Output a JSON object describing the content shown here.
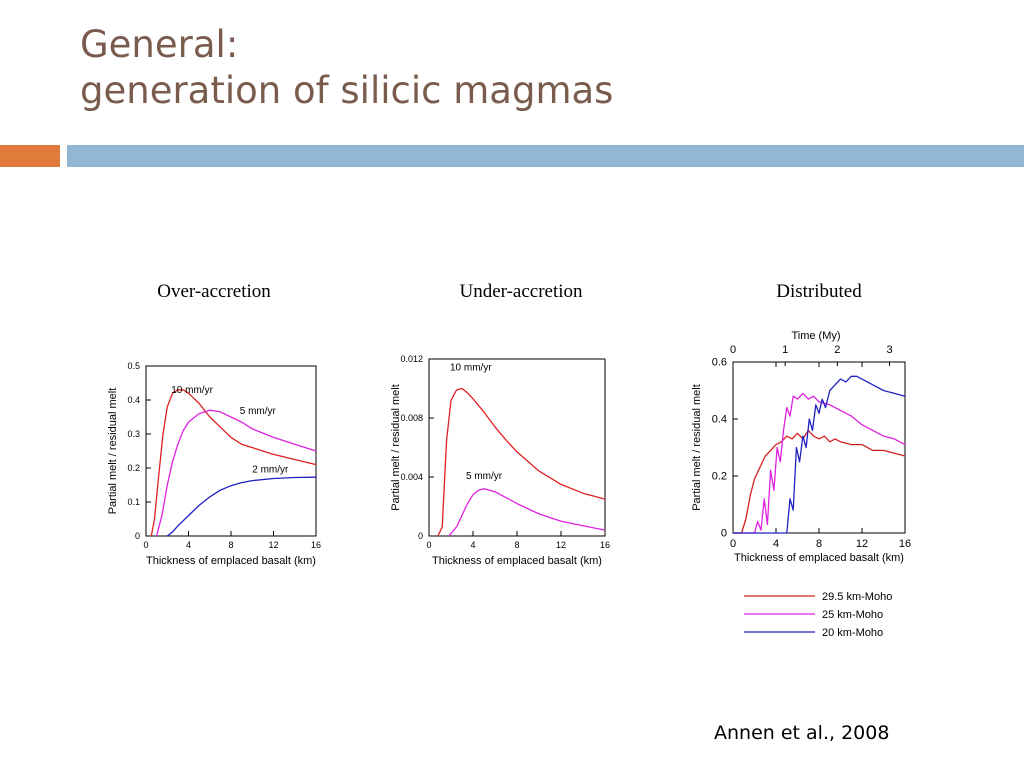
{
  "slide": {
    "title_line1": "General:",
    "title_line2": "generation of silicic magmas",
    "citation": "Annen et al., 2008",
    "title_color": "#7a5c4e",
    "accent_orange": "#e07b3c",
    "accent_blue": "#93b6d4"
  },
  "chart_data": [
    {
      "type": "line",
      "title": "Over-accretion",
      "xlabel": "Thickness of emplaced basalt (km)",
      "ylabel": "Partial melt / residual melt",
      "xlim": [
        0,
        16
      ],
      "ylim": [
        0,
        0.5
      ],
      "xticks": [
        "0",
        "4",
        "8",
        "12",
        "16"
      ],
      "yticks": [
        "0",
        "0.1",
        "0.2",
        "0.3",
        "0.4",
        "0.5"
      ],
      "series": [
        {
          "name": "10 mm/yr",
          "color": "#e02020",
          "x": [
            0.5,
            0.8,
            1.2,
            1.6,
            2.0,
            2.5,
            3.0,
            3.5,
            4.0,
            5.0,
            6.0,
            7.0,
            8.0,
            9.0,
            10.0,
            12.0,
            14.0,
            16.0
          ],
          "y": [
            0,
            0.05,
            0.18,
            0.3,
            0.38,
            0.42,
            0.43,
            0.43,
            0.42,
            0.39,
            0.35,
            0.32,
            0.29,
            0.27,
            0.26,
            0.24,
            0.225,
            0.21
          ]
        },
        {
          "name": "5 mm/yr",
          "color": "#e020e0",
          "x": [
            1.0,
            1.5,
            2.0,
            2.5,
            3.0,
            3.5,
            4.0,
            5.0,
            6.0,
            7.0,
            8.0,
            9.0,
            10.0,
            12.0,
            14.0,
            16.0
          ],
          "y": [
            0,
            0.06,
            0.15,
            0.22,
            0.27,
            0.31,
            0.335,
            0.36,
            0.37,
            0.365,
            0.35,
            0.335,
            0.315,
            0.29,
            0.27,
            0.25
          ]
        },
        {
          "name": "2 mm/yr",
          "color": "#2020c0",
          "x": [
            2.0,
            2.5,
            3.0,
            4.0,
            5.0,
            6.0,
            7.0,
            8.0,
            9.0,
            10.0,
            12.0,
            14.0,
            16.0
          ],
          "y": [
            0,
            0.012,
            0.03,
            0.06,
            0.09,
            0.115,
            0.135,
            0.148,
            0.157,
            0.163,
            0.169,
            0.172,
            0.173
          ]
        }
      ],
      "annotations": [
        "10 mm/yr",
        "5 mm/yr",
        "2 mm/yr"
      ]
    },
    {
      "type": "line",
      "title": "Under-accretion",
      "xlabel": "Thickness of emplaced basalt (km)",
      "ylabel": "Partial melt / residual melt",
      "xlim": [
        0,
        16
      ],
      "ylim": [
        0,
        0.012
      ],
      "xticks": [
        "0",
        "4",
        "8",
        "12",
        "16"
      ],
      "yticks": [
        "0",
        "0.004",
        "0.008",
        "0.012"
      ],
      "series": [
        {
          "name": "10 mm/yr",
          "color": "#e02020",
          "x": [
            0.8,
            1.2,
            1.6,
            2.0,
            2.5,
            3.0,
            3.5,
            4.0,
            5.0,
            6.0,
            7.0,
            8.0,
            10.0,
            12.0,
            14.0,
            16.0
          ],
          "y": [
            0,
            0.0006,
            0.0065,
            0.0092,
            0.0099,
            0.01,
            0.0097,
            0.0093,
            0.0084,
            0.0074,
            0.0065,
            0.0057,
            0.0044,
            0.0035,
            0.0029,
            0.0025
          ]
        },
        {
          "name": "5 mm/yr",
          "color": "#e020e0",
          "x": [
            1.8,
            2.5,
            3.0,
            3.5,
            4.0,
            4.5,
            5.0,
            5.5,
            6.0,
            7.0,
            8.0,
            10.0,
            12.0,
            14.0,
            16.0
          ],
          "y": [
            0,
            0.0006,
            0.0014,
            0.0022,
            0.0028,
            0.0031,
            0.0032,
            0.0031,
            0.003,
            0.0026,
            0.0022,
            0.0015,
            0.001,
            0.0007,
            0.0004
          ]
        }
      ],
      "annotations": [
        "10 mm/yr",
        "5 mm/yr"
      ]
    },
    {
      "type": "line",
      "title": "Distributed",
      "xlabel": "Thickness of emplaced basalt (km)",
      "ylabel": "Partial melt / residual melt",
      "secondary_xlabel": "Time (My)",
      "xlim": [
        0,
        16
      ],
      "ylim": [
        0,
        0.6
      ],
      "xticks": [
        "0",
        "4",
        "8",
        "12",
        "16"
      ],
      "yticks": [
        "0",
        "0.2",
        "0.4",
        "0.6"
      ],
      "secondary_xticks": [
        "0",
        "1",
        "2",
        "3"
      ],
      "legend_position": "bottom",
      "series": [
        {
          "name": "29.5 km-Moho",
          "color": "#d02020",
          "x": [
            0,
            0.8,
            1.2,
            1.6,
            2.0,
            2.5,
            3.0,
            3.5,
            4.0,
            4.5,
            5.0,
            5.5,
            6.0,
            6.5,
            7.0,
            7.5,
            8.0,
            8.5,
            9.0,
            9.5,
            10.0,
            11.0,
            12.0,
            13.0,
            14.0,
            15.0,
            16.0
          ],
          "y": [
            0,
            0,
            0.05,
            0.13,
            0.19,
            0.23,
            0.27,
            0.29,
            0.31,
            0.32,
            0.34,
            0.33,
            0.35,
            0.33,
            0.36,
            0.34,
            0.33,
            0.34,
            0.32,
            0.33,
            0.32,
            0.31,
            0.31,
            0.29,
            0.29,
            0.28,
            0.27
          ]
        },
        {
          "name": "25 km-Moho",
          "color": "#e020e0",
          "x": [
            0,
            2.0,
            2.3,
            2.6,
            2.9,
            3.2,
            3.5,
            3.8,
            4.1,
            4.4,
            4.7,
            5.0,
            5.3,
            5.6,
            6.0,
            6.5,
            7.0,
            7.5,
            8.0,
            9.0,
            10.0,
            11.0,
            12.0,
            13.0,
            14.0,
            15.0,
            16.0
          ],
          "y": [
            0,
            0,
            0.04,
            0.01,
            0.12,
            0.03,
            0.22,
            0.15,
            0.3,
            0.25,
            0.36,
            0.44,
            0.41,
            0.48,
            0.47,
            0.49,
            0.47,
            0.48,
            0.46,
            0.45,
            0.43,
            0.41,
            0.38,
            0.36,
            0.34,
            0.33,
            0.31
          ]
        },
        {
          "name": "20 km-Moho",
          "color": "#2020c0",
          "x": [
            0,
            5.0,
            5.3,
            5.6,
            5.9,
            6.2,
            6.5,
            6.8,
            7.1,
            7.4,
            7.7,
            8.0,
            8.3,
            8.6,
            9.0,
            9.5,
            10.0,
            10.5,
            11.0,
            11.5,
            12.0,
            13.0,
            14.0,
            15.0,
            16.0
          ],
          "y": [
            0,
            0,
            0.12,
            0.08,
            0.3,
            0.25,
            0.34,
            0.3,
            0.4,
            0.36,
            0.45,
            0.42,
            0.47,
            0.44,
            0.5,
            0.52,
            0.54,
            0.53,
            0.55,
            0.55,
            0.54,
            0.52,
            0.5,
            0.49,
            0.48
          ]
        }
      ]
    }
  ]
}
